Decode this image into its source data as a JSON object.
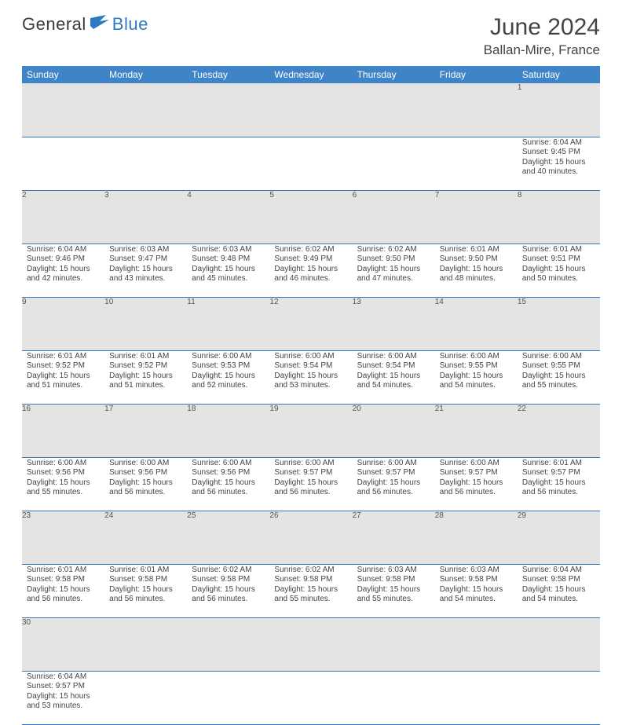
{
  "logo": {
    "dark": "General",
    "blue": "Blue"
  },
  "title": "June 2024",
  "location": "Ballan-Mire, France",
  "colors": {
    "header_bg": "#3f84c6",
    "header_fg": "#ffffff",
    "daynum_bg": "#e4e4e4",
    "rule": "#2f78c4",
    "logo_blue": "#2f78c4",
    "text": "#444444"
  },
  "weekdays": [
    "Sunday",
    "Monday",
    "Tuesday",
    "Wednesday",
    "Thursday",
    "Friday",
    "Saturday"
  ],
  "weeks": [
    [
      null,
      null,
      null,
      null,
      null,
      null,
      {
        "n": "1",
        "sr": "Sunrise: 6:04 AM",
        "ss": "Sunset: 9:45 PM",
        "d1": "Daylight: 15 hours",
        "d2": "and 40 minutes."
      }
    ],
    [
      {
        "n": "2",
        "sr": "Sunrise: 6:04 AM",
        "ss": "Sunset: 9:46 PM",
        "d1": "Daylight: 15 hours",
        "d2": "and 42 minutes."
      },
      {
        "n": "3",
        "sr": "Sunrise: 6:03 AM",
        "ss": "Sunset: 9:47 PM",
        "d1": "Daylight: 15 hours",
        "d2": "and 43 minutes."
      },
      {
        "n": "4",
        "sr": "Sunrise: 6:03 AM",
        "ss": "Sunset: 9:48 PM",
        "d1": "Daylight: 15 hours",
        "d2": "and 45 minutes."
      },
      {
        "n": "5",
        "sr": "Sunrise: 6:02 AM",
        "ss": "Sunset: 9:49 PM",
        "d1": "Daylight: 15 hours",
        "d2": "and 46 minutes."
      },
      {
        "n": "6",
        "sr": "Sunrise: 6:02 AM",
        "ss": "Sunset: 9:50 PM",
        "d1": "Daylight: 15 hours",
        "d2": "and 47 minutes."
      },
      {
        "n": "7",
        "sr": "Sunrise: 6:01 AM",
        "ss": "Sunset: 9:50 PM",
        "d1": "Daylight: 15 hours",
        "d2": "and 48 minutes."
      },
      {
        "n": "8",
        "sr": "Sunrise: 6:01 AM",
        "ss": "Sunset: 9:51 PM",
        "d1": "Daylight: 15 hours",
        "d2": "and 50 minutes."
      }
    ],
    [
      {
        "n": "9",
        "sr": "Sunrise: 6:01 AM",
        "ss": "Sunset: 9:52 PM",
        "d1": "Daylight: 15 hours",
        "d2": "and 51 minutes."
      },
      {
        "n": "10",
        "sr": "Sunrise: 6:01 AM",
        "ss": "Sunset: 9:52 PM",
        "d1": "Daylight: 15 hours",
        "d2": "and 51 minutes."
      },
      {
        "n": "11",
        "sr": "Sunrise: 6:00 AM",
        "ss": "Sunset: 9:53 PM",
        "d1": "Daylight: 15 hours",
        "d2": "and 52 minutes."
      },
      {
        "n": "12",
        "sr": "Sunrise: 6:00 AM",
        "ss": "Sunset: 9:54 PM",
        "d1": "Daylight: 15 hours",
        "d2": "and 53 minutes."
      },
      {
        "n": "13",
        "sr": "Sunrise: 6:00 AM",
        "ss": "Sunset: 9:54 PM",
        "d1": "Daylight: 15 hours",
        "d2": "and 54 minutes."
      },
      {
        "n": "14",
        "sr": "Sunrise: 6:00 AM",
        "ss": "Sunset: 9:55 PM",
        "d1": "Daylight: 15 hours",
        "d2": "and 54 minutes."
      },
      {
        "n": "15",
        "sr": "Sunrise: 6:00 AM",
        "ss": "Sunset: 9:55 PM",
        "d1": "Daylight: 15 hours",
        "d2": "and 55 minutes."
      }
    ],
    [
      {
        "n": "16",
        "sr": "Sunrise: 6:00 AM",
        "ss": "Sunset: 9:56 PM",
        "d1": "Daylight: 15 hours",
        "d2": "and 55 minutes."
      },
      {
        "n": "17",
        "sr": "Sunrise: 6:00 AM",
        "ss": "Sunset: 9:56 PM",
        "d1": "Daylight: 15 hours",
        "d2": "and 56 minutes."
      },
      {
        "n": "18",
        "sr": "Sunrise: 6:00 AM",
        "ss": "Sunset: 9:56 PM",
        "d1": "Daylight: 15 hours",
        "d2": "and 56 minutes."
      },
      {
        "n": "19",
        "sr": "Sunrise: 6:00 AM",
        "ss": "Sunset: 9:57 PM",
        "d1": "Daylight: 15 hours",
        "d2": "and 56 minutes."
      },
      {
        "n": "20",
        "sr": "Sunrise: 6:00 AM",
        "ss": "Sunset: 9:57 PM",
        "d1": "Daylight: 15 hours",
        "d2": "and 56 minutes."
      },
      {
        "n": "21",
        "sr": "Sunrise: 6:00 AM",
        "ss": "Sunset: 9:57 PM",
        "d1": "Daylight: 15 hours",
        "d2": "and 56 minutes."
      },
      {
        "n": "22",
        "sr": "Sunrise: 6:01 AM",
        "ss": "Sunset: 9:57 PM",
        "d1": "Daylight: 15 hours",
        "d2": "and 56 minutes."
      }
    ],
    [
      {
        "n": "23",
        "sr": "Sunrise: 6:01 AM",
        "ss": "Sunset: 9:58 PM",
        "d1": "Daylight: 15 hours",
        "d2": "and 56 minutes."
      },
      {
        "n": "24",
        "sr": "Sunrise: 6:01 AM",
        "ss": "Sunset: 9:58 PM",
        "d1": "Daylight: 15 hours",
        "d2": "and 56 minutes."
      },
      {
        "n": "25",
        "sr": "Sunrise: 6:02 AM",
        "ss": "Sunset: 9:58 PM",
        "d1": "Daylight: 15 hours",
        "d2": "and 56 minutes."
      },
      {
        "n": "26",
        "sr": "Sunrise: 6:02 AM",
        "ss": "Sunset: 9:58 PM",
        "d1": "Daylight: 15 hours",
        "d2": "and 55 minutes."
      },
      {
        "n": "27",
        "sr": "Sunrise: 6:03 AM",
        "ss": "Sunset: 9:58 PM",
        "d1": "Daylight: 15 hours",
        "d2": "and 55 minutes."
      },
      {
        "n": "28",
        "sr": "Sunrise: 6:03 AM",
        "ss": "Sunset: 9:58 PM",
        "d1": "Daylight: 15 hours",
        "d2": "and 54 minutes."
      },
      {
        "n": "29",
        "sr": "Sunrise: 6:04 AM",
        "ss": "Sunset: 9:58 PM",
        "d1": "Daylight: 15 hours",
        "d2": "and 54 minutes."
      }
    ],
    [
      {
        "n": "30",
        "sr": "Sunrise: 6:04 AM",
        "ss": "Sunset: 9:57 PM",
        "d1": "Daylight: 15 hours",
        "d2": "and 53 minutes."
      },
      null,
      null,
      null,
      null,
      null,
      null
    ]
  ]
}
